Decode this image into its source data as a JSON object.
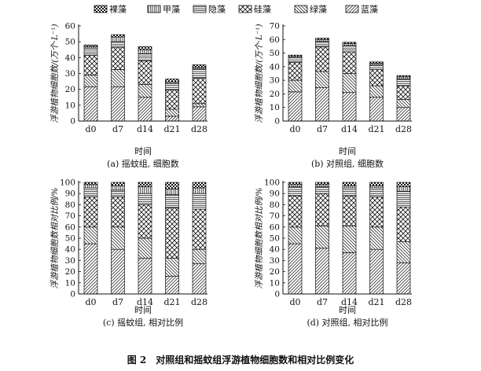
{
  "figure": {
    "caption": "图 2　对照组和摇蚊组浮游植物细胞数和相对比例变化"
  },
  "legend": {
    "items": [
      {
        "label": "裸藻",
        "pattern": "checker"
      },
      {
        "label": "甲藻",
        "pattern": "vertical"
      },
      {
        "label": "隐藻",
        "pattern": "horizontal"
      },
      {
        "label": "硅藻",
        "pattern": "crosshatch"
      },
      {
        "label": "绿藻",
        "pattern": "backslash"
      },
      {
        "label": "蓝藻",
        "pattern": "slash"
      }
    ]
  },
  "chart_data": [
    {
      "type": "bar",
      "stacked": true,
      "caption": "(a) 摇蚊组, 细胞数",
      "xlabel": "时间",
      "ylabel": "浮游植物细胞数/(万个·L⁻¹)",
      "ylim": [
        0,
        60
      ],
      "yticks": [
        0,
        10,
        20,
        30,
        40,
        50,
        60
      ],
      "categories": [
        "d0",
        "d7",
        "d14",
        "d21",
        "d28"
      ],
      "series": [
        {
          "name": "蓝藻",
          "values": [
            21.5,
            21.5,
            15,
            3,
            9
          ]
        },
        {
          "name": "绿藻",
          "values": [
            7.5,
            11,
            8,
            4.5,
            2
          ]
        },
        {
          "name": "硅藻",
          "values": [
            12.5,
            14,
            15,
            12,
            16
          ]
        },
        {
          "name": "隐藻",
          "values": [
            4.5,
            3.5,
            4.5,
            4,
            6
          ]
        },
        {
          "name": "甲藻",
          "values": [
            1,
            3,
            2.5,
            1,
            1
          ]
        },
        {
          "name": "裸藻",
          "values": [
            1,
            1.5,
            2,
            2,
            1.5
          ]
        }
      ]
    },
    {
      "type": "bar",
      "stacked": true,
      "caption": "(b) 对照组, 细胞数",
      "xlabel": "时间",
      "ylabel": "浮游植物细胞数/(万个·L⁻¹)",
      "ylim": [
        0,
        70
      ],
      "yticks": [
        0,
        10,
        20,
        30,
        40,
        50,
        60,
        70
      ],
      "categories": [
        "d0",
        "d7",
        "d14",
        "d21",
        "d28"
      ],
      "series": [
        {
          "name": "蓝藻",
          "values": [
            21.5,
            24.5,
            21,
            17.5,
            10
          ]
        },
        {
          "name": "绿藻",
          "values": [
            8.5,
            12,
            14,
            8.5,
            6
          ]
        },
        {
          "name": "硅藻",
          "values": [
            13,
            18,
            16,
            12,
            10
          ]
        },
        {
          "name": "隐藻",
          "values": [
            3.5,
            4,
            4.5,
            3.5,
            5
          ]
        },
        {
          "name": "甲藻",
          "values": [
            1,
            1.5,
            1.5,
            1,
            1.5
          ]
        },
        {
          "name": "裸藻",
          "values": [
            1,
            1,
            1,
            1,
            1
          ]
        }
      ]
    },
    {
      "type": "bar",
      "stacked": true,
      "caption": "(c) 摇蚊组, 相对比例",
      "xlabel": "时间",
      "ylabel": "浮游植物细胞数相对比例/%",
      "ylim": [
        0,
        100
      ],
      "yticks": [
        0,
        10,
        20,
        30,
        40,
        50,
        60,
        70,
        80,
        90,
        100
      ],
      "categories": [
        "d0",
        "d7",
        "d14",
        "d21",
        "d28"
      ],
      "series": [
        {
          "name": "蓝藻",
          "values": [
            45,
            40,
            32,
            16,
            27
          ]
        },
        {
          "name": "绿藻",
          "values": [
            15,
            20,
            18,
            16,
            13
          ]
        },
        {
          "name": "硅藻",
          "values": [
            27,
            27,
            30,
            45,
            36
          ]
        },
        {
          "name": "隐藻",
          "values": [
            8,
            6,
            10,
            12,
            14
          ]
        },
        {
          "name": "甲藻",
          "values": [
            3,
            4,
            6,
            5,
            5
          ]
        },
        {
          "name": "裸藻",
          "values": [
            2,
            3,
            4,
            6,
            5
          ]
        }
      ]
    },
    {
      "type": "bar",
      "stacked": true,
      "caption": "(d) 对照组, 相对比例",
      "xlabel": "时间",
      "ylabel": "浮游植物细胞数相对比例/%",
      "ylim": [
        0,
        100
      ],
      "yticks": [
        0,
        10,
        20,
        30,
        40,
        50,
        60,
        70,
        80,
        90,
        100
      ],
      "categories": [
        "d0",
        "d7",
        "d14",
        "d21",
        "d28"
      ],
      "series": [
        {
          "name": "蓝藻",
          "values": [
            45,
            41,
            37,
            40,
            28
          ]
        },
        {
          "name": "绿藻",
          "values": [
            15,
            20,
            24,
            20,
            19
          ]
        },
        {
          "name": "硅藻",
          "values": [
            28,
            29,
            27,
            27,
            31
          ]
        },
        {
          "name": "隐藻",
          "values": [
            8,
            6,
            7,
            8,
            14
          ]
        },
        {
          "name": "甲藻",
          "values": [
            2,
            2,
            2,
            2,
            4
          ]
        },
        {
          "name": "裸藻",
          "values": [
            2,
            2,
            3,
            3,
            4
          ]
        }
      ]
    }
  ]
}
